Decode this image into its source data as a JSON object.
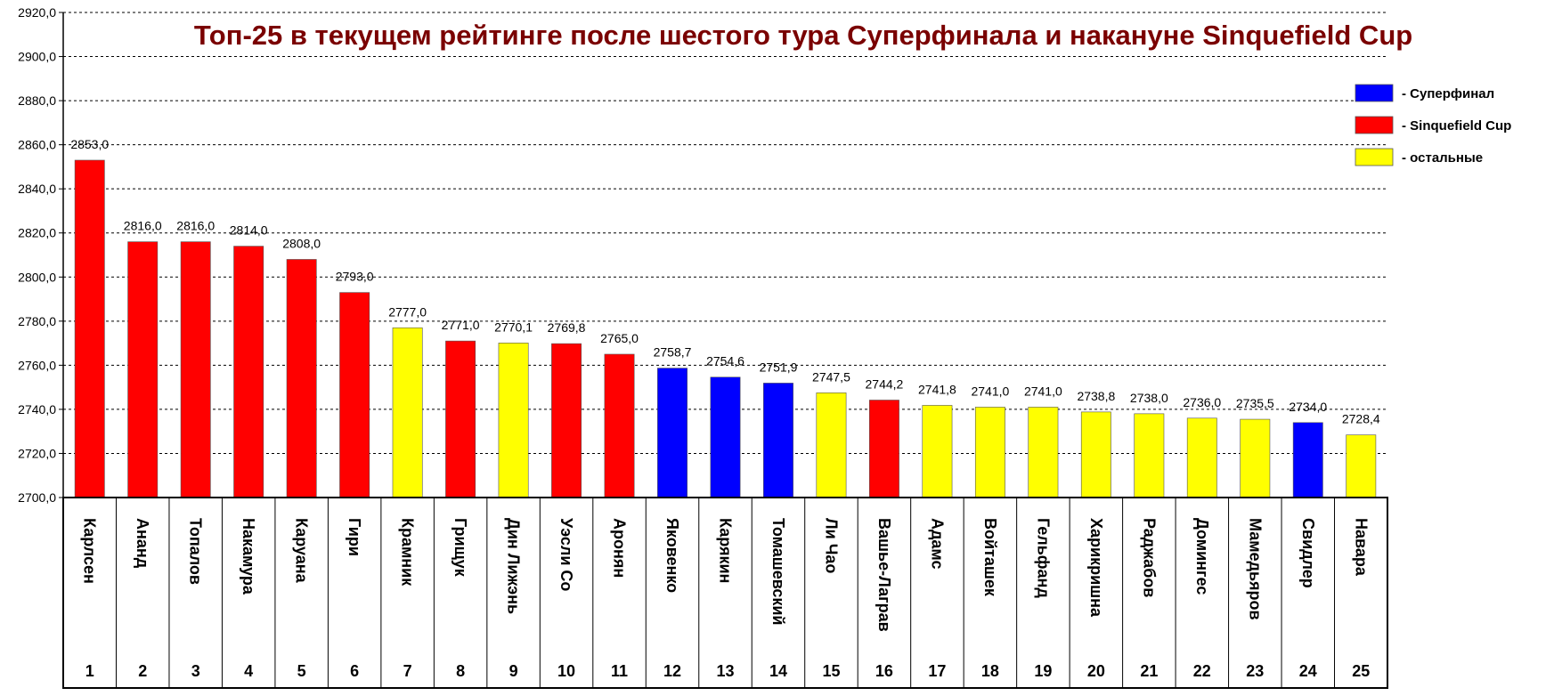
{
  "colors": {
    "superfinal": "#0000ff",
    "sinquefield": "#ff0000",
    "other": "#ffff00",
    "title": "#7a0000"
  },
  "chart_data": {
    "type": "bar",
    "title": "Топ-25 в текущем рейтинге после шестого тура Суперфинала и накануне Sinquefield Cup",
    "xlabel": "",
    "ylabel": "",
    "ylim": [
      2700,
      2920
    ],
    "yticks": [
      2700,
      2720,
      2740,
      2760,
      2780,
      2800,
      2820,
      2840,
      2860,
      2880,
      2900,
      2920
    ],
    "ytick_labels": [
      "2700,0",
      "2720,0",
      "2740,0",
      "2760,0",
      "2780,0",
      "2800,0",
      "2820,0",
      "2840,0",
      "2860,0",
      "2880,0",
      "2900,0",
      "2920,0"
    ],
    "grid": true,
    "legend_position": "top-right",
    "legend": [
      {
        "group": "superfinal",
        "label": "- Суперфинал"
      },
      {
        "group": "sinquefield",
        "label": "- Sinquefield Cup"
      },
      {
        "group": "other",
        "label": "- остальные"
      }
    ],
    "categories": [
      "Карлсен",
      "Ананд",
      "Топалов",
      "Накамура",
      "Каруана",
      "Гири",
      "Крамник",
      "Грищук",
      "Дин Лижэнь",
      "Уэсли Со",
      "Аронян",
      "Яковенко",
      "Карякин",
      "Томашевский",
      "Ли Чао",
      "Вашье-Лаграв",
      "Адамс",
      "Войташек",
      "Гельфанд",
      "Харикришна",
      "Раджабов",
      "Домингес",
      "Мамедьяров",
      "Свидлер",
      "Навара"
    ],
    "ranks": [
      "1",
      "2",
      "3",
      "4",
      "5",
      "6",
      "7",
      "8",
      "9",
      "10",
      "11",
      "12",
      "13",
      "14",
      "15",
      "16",
      "17",
      "18",
      "19",
      "20",
      "21",
      "22",
      "23",
      "24",
      "25"
    ],
    "values": [
      2853.0,
      2816.0,
      2816.0,
      2814.0,
      2808.0,
      2793.0,
      2777.0,
      2771.0,
      2770.1,
      2769.8,
      2765.0,
      2758.7,
      2754.6,
      2751.9,
      2747.5,
      2744.2,
      2741.8,
      2741.0,
      2741.0,
      2738.8,
      2738.0,
      2736.0,
      2735.5,
      2734.0,
      2728.4
    ],
    "value_labels": [
      "2853,0",
      "2816,0",
      "2816,0",
      "2814,0",
      "2808,0",
      "2793,0",
      "2777,0",
      "2771,0",
      "2770,1",
      "2769,8",
      "2765,0",
      "2758,7",
      "2754,6",
      "2751,9",
      "2747,5",
      "2744,2",
      "2741,8",
      "2741,0",
      "2741,0",
      "2738,8",
      "2738,0",
      "2736,0",
      "2735,5",
      "2734,0",
      "2728,4"
    ],
    "groups": [
      "sinquefield",
      "sinquefield",
      "sinquefield",
      "sinquefield",
      "sinquefield",
      "sinquefield",
      "other",
      "sinquefield",
      "other",
      "sinquefield",
      "sinquefield",
      "superfinal",
      "superfinal",
      "superfinal",
      "other",
      "sinquefield",
      "other",
      "other",
      "other",
      "other",
      "other",
      "other",
      "other",
      "superfinal",
      "other"
    ]
  }
}
